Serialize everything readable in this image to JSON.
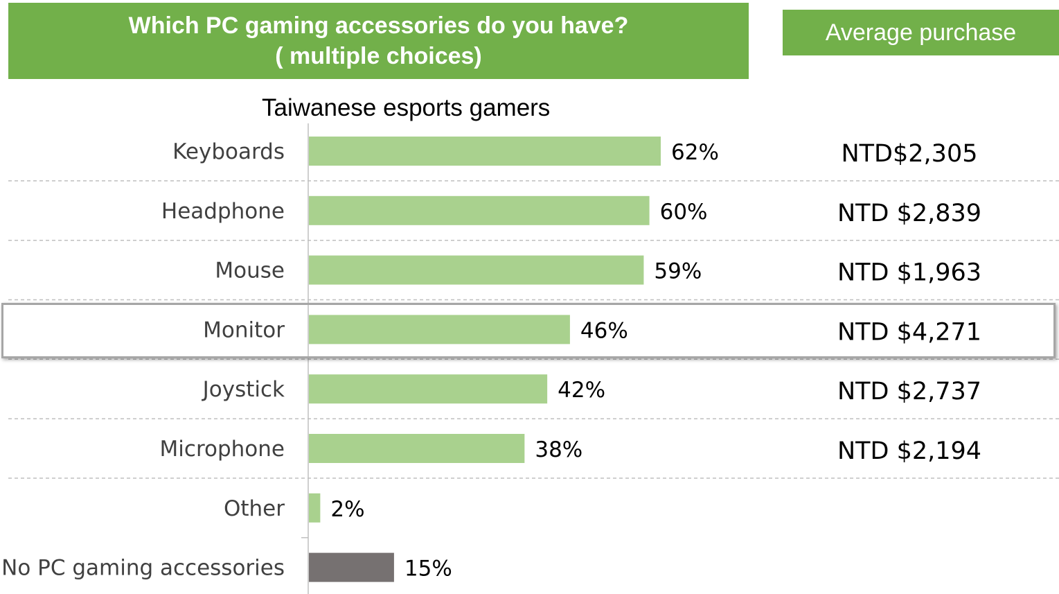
{
  "header": {
    "title_line1": "Which PC gaming accessories do you have?",
    "title_line2": "( multiple choices)",
    "avg_label": "Average purchase"
  },
  "chart_data": {
    "type": "bar",
    "subtitle": "Taiwanese esports gamers",
    "categories": [
      "Keyboards",
      "Headphone",
      "Mouse",
      "Monitor",
      "Joystick",
      "Microphone",
      "Other",
      "No PC gaming accessories"
    ],
    "values": [
      62,
      60,
      59,
      46,
      42,
      38,
      2,
      15
    ],
    "value_labels": [
      "62%",
      "60%",
      "59%",
      "46%",
      "42%",
      "38%",
      "2%",
      "15%"
    ],
    "avg_purchase": [
      "NTD$2,305",
      "NTD $2,839",
      "NTD $1,963",
      "NTD $4,271",
      "NTD $2,737",
      "NTD $2,194",
      "",
      ""
    ],
    "highlighted_category": "Monitor",
    "colors": {
      "bar": "#a9d18e",
      "bar_none": "#767171",
      "header_bg": "#72b04a",
      "gridline": "#bfbfbf",
      "highlight_border": "#a6a6a6"
    }
  }
}
